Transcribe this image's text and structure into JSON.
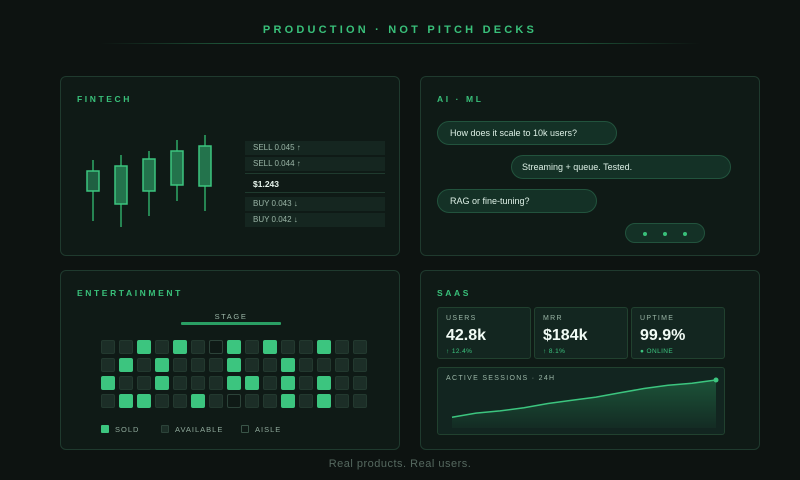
{
  "header": {
    "title": "PRODUCTION · NOT PITCH DECKS"
  },
  "fintech": {
    "title": "FINTECH",
    "orders": {
      "sells": [
        "SELL 0.045 ↑",
        "SELL 0.044 ↑"
      ],
      "price": "$1.243",
      "buys": [
        "BUY 0.043 ↓",
        "BUY 0.042 ↓"
      ]
    }
  },
  "ai": {
    "title": "AI · ML",
    "messages": {
      "q1": "How does it scale to 10k users?",
      "a1": "Streaming + queue. Tested.",
      "q2": "RAG or fine-tuning?"
    }
  },
  "entertainment": {
    "title": "ENTERTAINMENT",
    "stage_label": "STAGE",
    "legend": {
      "sold": "SOLD",
      "available": "AVAILABLE",
      "aisle": "AISLE"
    },
    "seat_map": [
      "..S.S.AS.S..S..",
      ".S.S...S..S....",
      "S..S...SS.S.S..",
      ".SS..S.A..S.S.."
    ]
  },
  "saas": {
    "title": "SAAS",
    "kpis": {
      "users": {
        "label": "USERS",
        "value": "42.8k",
        "sub": "↑ 12.4%"
      },
      "mrr": {
        "label": "MRR",
        "value": "$184k",
        "sub": "↑ 8.1%"
      },
      "uptime": {
        "label": "UPTIME",
        "value": "99.9%",
        "sub": "● ONLINE"
      }
    },
    "chart": {
      "title": "ACTIVE SESSIONS · 24H",
      "values": [
        10,
        14,
        16,
        19,
        23,
        26,
        29,
        33,
        37,
        40,
        42,
        45
      ]
    }
  },
  "colors": {
    "accent": "#39c07a",
    "sold": "#3cc57f",
    "background": "#0d1311"
  },
  "footer": {
    "text": "Real products. Real users."
  }
}
